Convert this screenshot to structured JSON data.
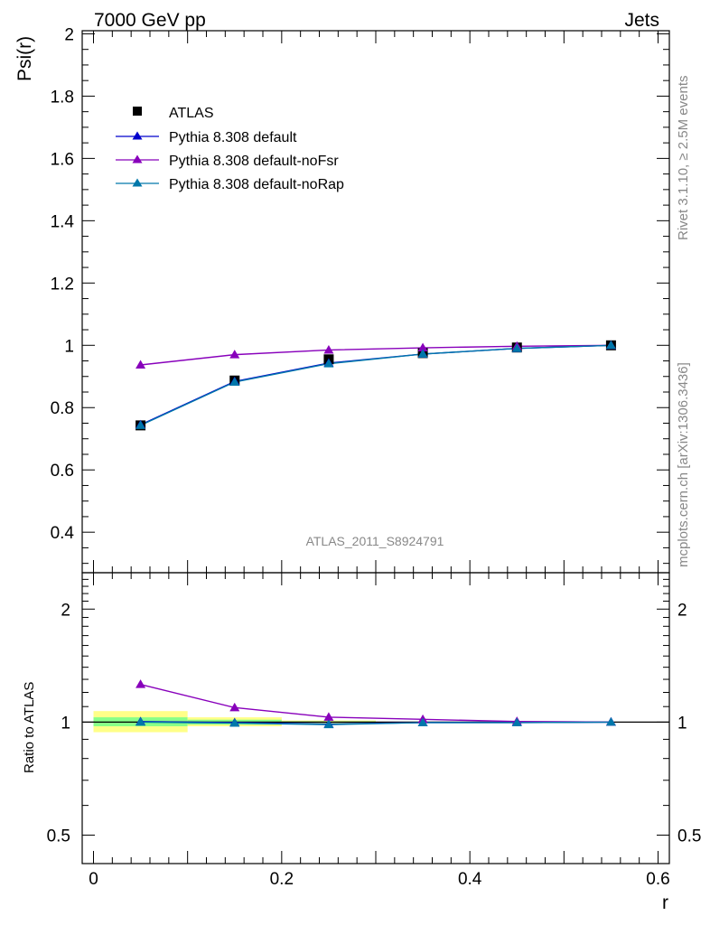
{
  "header": {
    "left": "7000 GeV pp",
    "right": "Jets"
  },
  "side_texts": {
    "rivet": "Rivet 3.1.10, ≥ 2.5M events",
    "mcplots": "mcplots.cern.ch [arXiv:1306.3436]"
  },
  "analysis_label": "ATLAS_2011_S8924791",
  "colors": {
    "data": "#000000",
    "default": "#0000cc",
    "noFsr": "#8800bb",
    "noRap": "#0077aa",
    "band_inner": "#88ff88",
    "band_outer": "#ffff88"
  },
  "chart_data": [
    {
      "type": "line",
      "ylabel": "Psi(r)",
      "xlim": [
        -0.012,
        0.612
      ],
      "ylim": [
        0.27,
        2.01
      ],
      "y_ticks": [
        0.4,
        0.6,
        0.8,
        1,
        1.2,
        1.4,
        1.6,
        1.8,
        2
      ],
      "y_tick_labels": [
        "0.4",
        "0.6",
        "0.8",
        "1",
        "1.2",
        "1.4",
        "1.6",
        "1.8",
        "2"
      ],
      "legend_position": "top-left",
      "x": [
        0.05,
        0.15,
        0.25,
        0.35,
        0.45,
        0.55
      ],
      "series": [
        {
          "name": "ATLAS",
          "marker": "square",
          "values": [
            0.743,
            0.887,
            0.955,
            0.975,
            0.993,
            1.0
          ]
        },
        {
          "name": "Pythia 8.308 default",
          "marker": "triangle",
          "values": [
            0.745,
            0.884,
            0.943,
            0.972,
            0.99,
            1.0
          ]
        },
        {
          "name": "Pythia 8.308 default-noFsr",
          "marker": "triangle",
          "values": [
            0.937,
            0.97,
            0.985,
            0.992,
            0.997,
            1.0
          ]
        },
        {
          "name": "Pythia 8.308 default-noRap",
          "marker": "triangle",
          "values": [
            0.743,
            0.882,
            0.941,
            0.972,
            0.99,
            1.0
          ]
        }
      ]
    },
    {
      "type": "line",
      "ylabel": "Ratio to ATLAS",
      "xlabel": "r",
      "xlim": [
        -0.012,
        0.612
      ],
      "ylim": [
        0.42,
        2.5
      ],
      "log_y": true,
      "x_ticks": [
        0,
        0.2,
        0.4,
        0.6
      ],
      "x_tick_labels": [
        "0",
        "0.2",
        "0.4",
        "0.6"
      ],
      "y_ticks": [
        0.5,
        1,
        2
      ],
      "y_tick_labels": [
        "0.5",
        "1",
        "2"
      ],
      "x": [
        0.05,
        0.15,
        0.25,
        0.35,
        0.45,
        0.55
      ],
      "bands": [
        {
          "x_range": [
            0.0,
            0.1
          ],
          "inner": [
            0.975,
            1.03
          ],
          "outer": [
            0.94,
            1.07
          ]
        },
        {
          "x_range": [
            0.1,
            0.2
          ],
          "inner": [
            0.985,
            1.015
          ],
          "outer": [
            0.975,
            1.03
          ]
        },
        {
          "x_range": [
            0.2,
            0.3
          ],
          "inner": [
            0.995,
            1.005
          ],
          "outer": [
            0.99,
            1.01
          ]
        }
      ],
      "series": [
        {
          "name": "Pythia 8.308 default",
          "values": [
            1.003,
            0.997,
            0.988,
            0.997,
            0.997,
            1.0
          ]
        },
        {
          "name": "Pythia 8.308 default-noFsr",
          "values": [
            1.26,
            1.093,
            1.031,
            1.017,
            1.004,
            1.0
          ]
        },
        {
          "name": "Pythia 8.308 default-noRap",
          "values": [
            1.0,
            0.994,
            0.985,
            0.997,
            0.997,
            1.0
          ]
        }
      ]
    }
  ]
}
